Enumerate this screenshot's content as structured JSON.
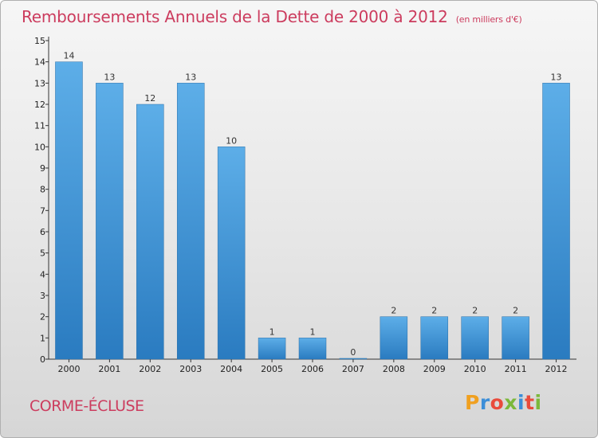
{
  "header": {
    "title": "Remboursements Annuels de la Dette de 2000 à 2012",
    "unit": "(en milliers d'€)"
  },
  "footer": {
    "place": "CORME-ÉCLUSE",
    "logo_text": "Proxiti",
    "logo_colors": [
      "#f0a020",
      "#3c8ed8",
      "#e94b3c",
      "#7bb83a",
      "#3c8ed8",
      "#e94b3c",
      "#7bb83a"
    ]
  },
  "colors": {
    "bar_top": "#5daee8",
    "bar_bottom": "#2a7bc0",
    "title": "#cc3c5e"
  },
  "chart_data": {
    "type": "bar",
    "title": "Remboursements Annuels de la Dette de 2000 à 2012",
    "subtitle": "(en milliers d'€)",
    "categories": [
      "2000",
      "2001",
      "2002",
      "2003",
      "2004",
      "2005",
      "2006",
      "2007",
      "2008",
      "2009",
      "2010",
      "2011",
      "2012"
    ],
    "values": [
      14,
      13,
      12,
      13,
      10,
      1,
      1,
      0,
      2,
      2,
      2,
      2,
      13
    ],
    "ylim": [
      0,
      15
    ],
    "yticks": [
      0,
      1,
      2,
      3,
      4,
      5,
      6,
      7,
      8,
      9,
      10,
      11,
      12,
      13,
      14,
      15
    ],
    "grid": false,
    "legend": "none"
  }
}
